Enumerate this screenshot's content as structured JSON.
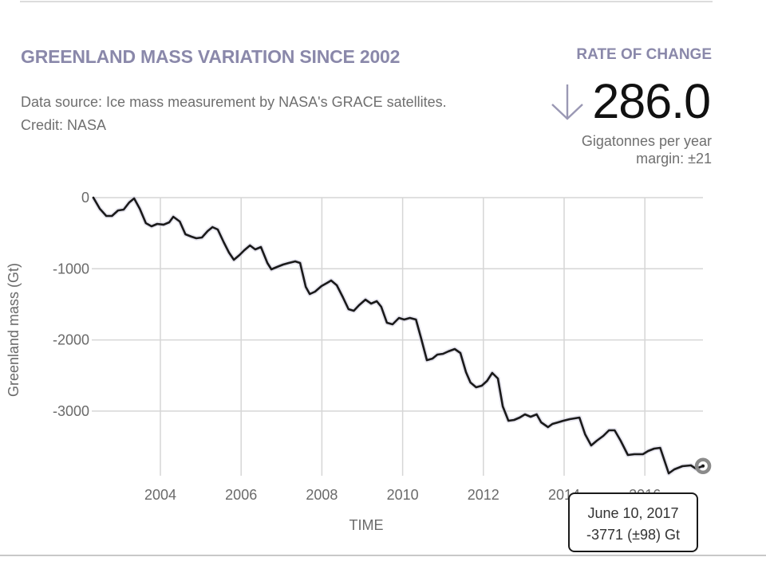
{
  "header": {
    "title": "GREENLAND MASS VARIATION SINCE 2002",
    "source_text": "Data source: Ice mass measurement by NASA's GRACE satellites.",
    "credit_text": "Credit: NASA"
  },
  "rate": {
    "label": "RATE OF CHANGE",
    "direction_icon": "arrow-down-icon",
    "value": "286.0",
    "unit": "Gigatonnes per year",
    "margin": "margin: ±21"
  },
  "tooltip": {
    "date": "June 10, 2017",
    "value": "-3771 (±98) Gt"
  },
  "colors": {
    "accent": "#8a88aa",
    "line": "#1a1a1a",
    "grid": "#d6d6d6",
    "text_muted": "#6f6f6f"
  },
  "chart_data": {
    "type": "line",
    "title": "GREENLAND MASS VARIATION SINCE 2002",
    "xlabel": "TIME",
    "ylabel": "Greenland mass (Gt)",
    "xlim": [
      2002,
      2017.6
    ],
    "ylim": [
      -3950,
      0
    ],
    "x_ticks": [
      2004,
      2006,
      2008,
      2010,
      2012,
      2014,
      2016
    ],
    "x_tick_labels": [
      "2004",
      "2006",
      "2008",
      "2010",
      "2012",
      "2014",
      "2016"
    ],
    "y_ticks": [
      0,
      -1000,
      -2000,
      -3000
    ],
    "y_tick_labels": [
      "0",
      "-1000",
      "-2000",
      "-3000"
    ],
    "grid": true,
    "legend": "none",
    "highlighted_point": {
      "x": 2017.44,
      "y": -3771,
      "label": "June 10, 2017",
      "uncertainty": 98
    },
    "series": [
      {
        "name": "Greenland mass",
        "x": [
          2002.34,
          2002.5,
          2002.66,
          2002.8,
          2002.95,
          2003.09,
          2003.23,
          2003.35,
          2003.49,
          2003.64,
          2003.78,
          2003.92,
          2004.08,
          2004.22,
          2004.32,
          2004.48,
          2004.62,
          2004.77,
          2004.89,
          2005.03,
          2005.17,
          2005.29,
          2005.42,
          2005.57,
          2005.7,
          2005.82,
          2005.96,
          2006.08,
          2006.22,
          2006.35,
          2006.49,
          2006.65,
          2006.75,
          2006.89,
          2007.04,
          2007.18,
          2007.34,
          2007.46,
          2007.6,
          2007.7,
          2007.83,
          2007.99,
          2008.13,
          2008.23,
          2008.37,
          2008.52,
          2008.66,
          2008.79,
          2008.92,
          2009.08,
          2009.22,
          2009.36,
          2009.47,
          2009.61,
          2009.75,
          2009.91,
          2010.04,
          2010.18,
          2010.33,
          2010.46,
          2010.6,
          2010.74,
          2010.86,
          2011.0,
          2011.13,
          2011.29,
          2011.43,
          2011.57,
          2011.68,
          2011.82,
          2011.96,
          2012.09,
          2012.22,
          2012.36,
          2012.48,
          2012.62,
          2012.76,
          2012.9,
          2013.03,
          2013.17,
          2013.32,
          2013.43,
          2013.6,
          2013.71,
          2013.85,
          2013.98,
          2014.14,
          2014.38,
          2014.52,
          2014.67,
          2014.81,
          2014.97,
          2015.11,
          2015.25,
          2015.4,
          2015.58,
          2015.74,
          2015.95,
          2016.08,
          2016.23,
          2016.38,
          2016.59,
          2016.73,
          2016.93,
          2017.14,
          2017.26,
          2017.44
        ],
        "y": [
          0,
          -157,
          -258,
          -258,
          -180,
          -168,
          -67,
          -11,
          -157,
          -358,
          -403,
          -370,
          -380,
          -347,
          -269,
          -336,
          -515,
          -549,
          -571,
          -560,
          -470,
          -414,
          -448,
          -627,
          -773,
          -873,
          -806,
          -739,
          -672,
          -728,
          -694,
          -918,
          -1008,
          -974,
          -941,
          -918,
          -896,
          -918,
          -1254,
          -1355,
          -1321,
          -1243,
          -1198,
          -1165,
          -1232,
          -1400,
          -1568,
          -1590,
          -1512,
          -1433,
          -1489,
          -1456,
          -1534,
          -1758,
          -1781,
          -1691,
          -1713,
          -1691,
          -1713,
          -1982,
          -2284,
          -2262,
          -2206,
          -2195,
          -2161,
          -2128,
          -2184,
          -2452,
          -2598,
          -2665,
          -2643,
          -2576,
          -2464,
          -2542,
          -2934,
          -3135,
          -3124,
          -3091,
          -3046,
          -3079,
          -3046,
          -3158,
          -3225,
          -3180,
          -3158,
          -3135,
          -3113,
          -3091,
          -3326,
          -3483,
          -3415,
          -3348,
          -3270,
          -3270,
          -3415,
          -3617,
          -3606,
          -3606,
          -3561,
          -3527,
          -3516,
          -3875,
          -3819,
          -3774,
          -3763,
          -3808,
          -3771
        ]
      }
    ]
  }
}
